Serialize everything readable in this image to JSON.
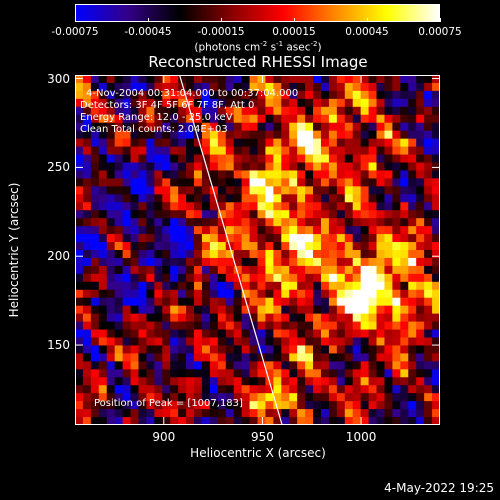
{
  "colorbar": {
    "ticks": [
      "-0.00075",
      "-0.00045",
      "-0.00015",
      "0.00015",
      "0.00045",
      "0.00075"
    ],
    "tick_values": [
      -0.00075,
      -0.00045,
      -0.00015,
      0.00015,
      0.00045,
      0.00075
    ],
    "range": [
      -0.00075,
      0.00075
    ],
    "units_prefix": "(photons cm",
    "units_exp1": "-2",
    "units_mid1": " s",
    "units_exp2": "-1",
    "units_mid2": " asec",
    "units_exp3": "-2",
    "units_suffix": ")",
    "colors": [
      "#0000ff",
      "#330088",
      "#000000",
      "#880000",
      "#ff0000",
      "#ff8800",
      "#ffff00",
      "#ffffff"
    ]
  },
  "chart_data": {
    "type": "heatmap",
    "title": "Reconstructed RHESSI Image",
    "xlabel": "Heliocentric X (arcsec)",
    "ylabel": "Heliocentric Y (arcsec)",
    "xlim": [
      855,
      1040
    ],
    "ylim": [
      105,
      302
    ],
    "xticks": [
      "900",
      "950",
      "1000"
    ],
    "xtick_values": [
      900,
      950,
      1000
    ],
    "yticks": [
      "300",
      "250",
      "200",
      "150"
    ],
    "ytick_values": [
      300,
      250,
      200,
      150
    ],
    "peak": [
      1007,
      183
    ],
    "limb_line": [
      [
        908,
        302
      ],
      [
        960,
        105
      ]
    ],
    "annotations": {
      "time": "4-Nov-2004 00:31:04.000 to 00:37:04.000",
      "detectors": "Detectors: 3F 4F 5F 6F 7F 8F, Att 0",
      "energy": "Energy Range: 12.0 - 25.0 keV",
      "clean": "Clean     Total counts: 2.04E+03",
      "peak_text": "Position of Peak = [1007,183]"
    }
  },
  "footer": {
    "date": "4-May-2022 19:25"
  }
}
